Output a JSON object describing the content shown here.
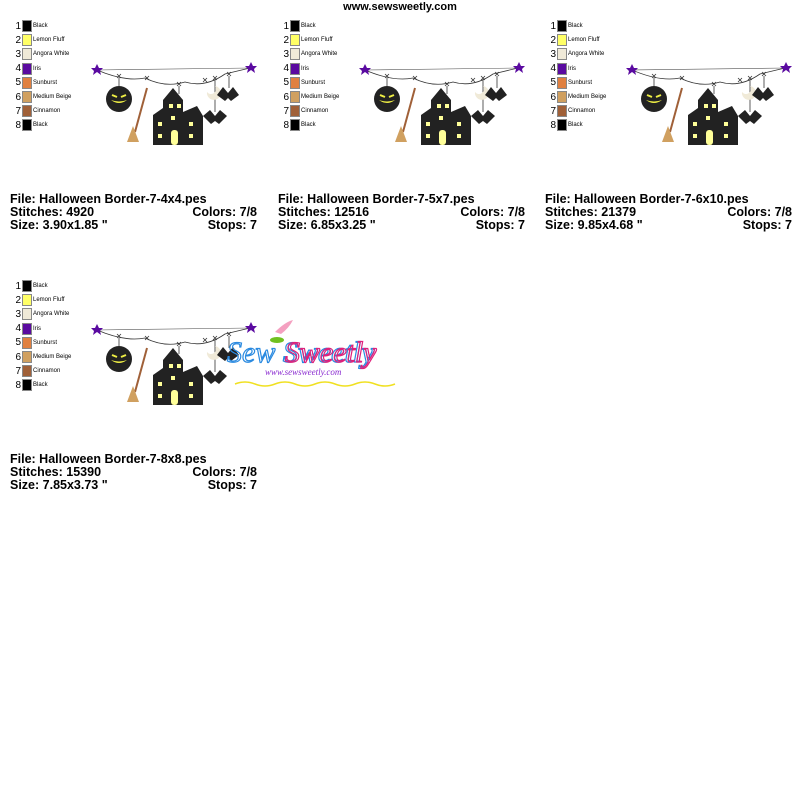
{
  "site": "www.sewsweetly.com",
  "colors": [
    {
      "num": "1",
      "name": "Black",
      "hex": "#000000"
    },
    {
      "num": "2",
      "name": "Lemon Fluff",
      "hex": "#ffff66"
    },
    {
      "num": "3",
      "name": "Angora White",
      "hex": "#f0ead8"
    },
    {
      "num": "4",
      "name": "Iris",
      "hex": "#5a0aa0"
    },
    {
      "num": "5",
      "name": "Sunburst",
      "hex": "#e08040"
    },
    {
      "num": "6",
      "name": "Medium Beige",
      "hex": "#d0a060"
    },
    {
      "num": "7",
      "name": "Cinnamon",
      "hex": "#a06038"
    },
    {
      "num": "8",
      "name": "Black",
      "hex": "#000000"
    }
  ],
  "panels": [
    {
      "file": "File: Halloween Border-7-4x4.pes",
      "stitches": "Stitches: 4920",
      "colors": "Colors: 7/8",
      "size": "Size: 3.90x1.85 \"",
      "stops": "Stops: 7"
    },
    {
      "file": "File: Halloween Border-7-5x7.pes",
      "stitches": "Stitches: 12516",
      "colors": "Colors: 7/8",
      "size": "Size: 6.85x3.25 \"",
      "stops": "Stops: 7"
    },
    {
      "file": "File: Halloween Border-7-6x10.pes",
      "stitches": "Stitches: 21379",
      "colors": "Colors: 7/8",
      "size": "Size: 9.85x4.68 \"",
      "stops": "Stops: 7"
    },
    {
      "file": "File: Halloween Border-7-8x8.pes",
      "stitches": "Stitches: 15390",
      "colors": "Colors: 7/8",
      "size": "Size: 7.85x3.73 \"",
      "stops": "Stops: 7"
    }
  ],
  "watermark": {
    "logo": "Sew Sweetly",
    "url": "www.sewsweetly.com"
  }
}
